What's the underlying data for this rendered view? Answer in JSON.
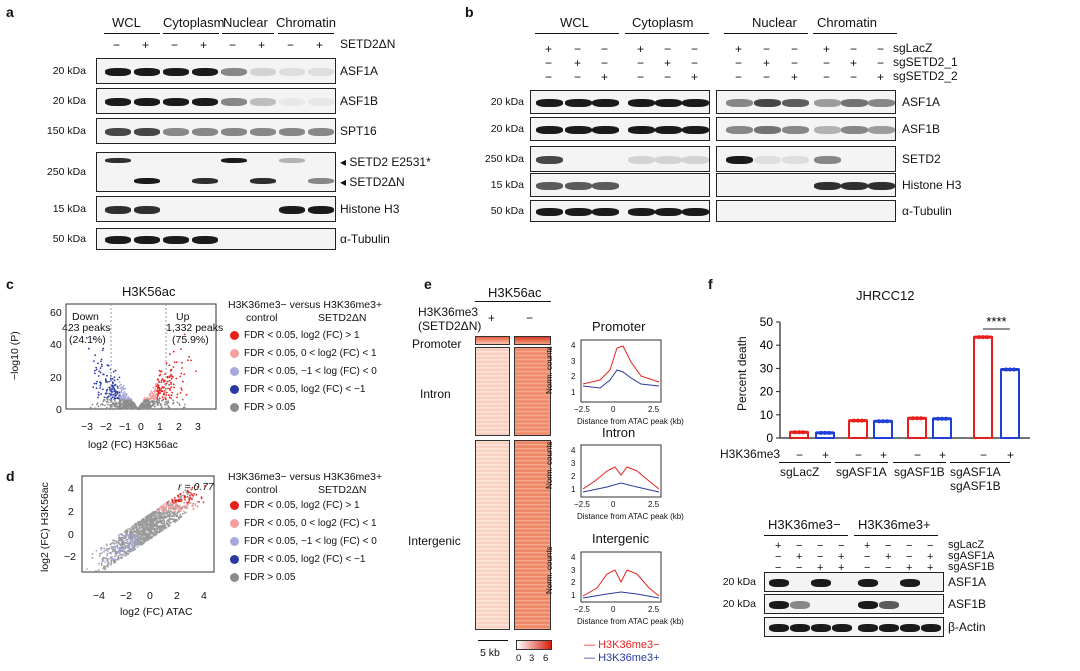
{
  "panel_letters": [
    "a",
    "b",
    "c",
    "d",
    "e",
    "f"
  ],
  "panel_a": {
    "groups": [
      "WCL",
      "Cytoplasm",
      "Nuclear",
      "Chromatin"
    ],
    "condition_label": "SETD2ΔN",
    "signs": [
      "−",
      "+",
      "−",
      "+",
      "−",
      "+",
      "−",
      "+"
    ],
    "rows": [
      {
        "kda": "20 kDa",
        "label": "ASF1A"
      },
      {
        "kda": "20 kDa",
        "label": "ASF1B"
      },
      {
        "kda": "150 kDa",
        "label": "SPT16"
      },
      {
        "kda": "250 kDa",
        "label": "◂ SETD2 E2531*",
        "label2": "◂ SETD2ΔN"
      },
      {
        "kda": "15 kDa",
        "label": "Histone H3"
      },
      {
        "kda": "50 kDa",
        "label": "α-Tubulin"
      }
    ]
  },
  "panel_b": {
    "groups": [
      "WCL",
      "Cytoplasm",
      "Nuclear",
      "Chromatin"
    ],
    "sg_labels": [
      "sgLacZ",
      "sgSETD2_1",
      "sgSETD2_2"
    ],
    "sg_rows": [
      [
        "+",
        "−",
        "−",
        "+",
        "−",
        "−",
        "+",
        "−",
        "−",
        "+",
        "−",
        "−"
      ],
      [
        "−",
        "+",
        "−",
        "−",
        "+",
        "−",
        "−",
        "+",
        "−",
        "−",
        "+",
        "−"
      ],
      [
        "−",
        "−",
        "+",
        "−",
        "−",
        "+",
        "−",
        "−",
        "+",
        "−",
        "−",
        "+"
      ]
    ],
    "rows": [
      {
        "kda": "20 kDa",
        "label": "ASF1A"
      },
      {
        "kda": "20 kDa",
        "label": "ASF1B"
      },
      {
        "kda": "250 kDa",
        "label": "SETD2"
      },
      {
        "kda": "15 kDa",
        "label": "Histone H3"
      },
      {
        "kda": "50 kDa",
        "label": "α-Tubulin"
      }
    ]
  },
  "panel_c": {
    "title": "H3K56ac",
    "down_label": "Down",
    "down_peaks": "423 peaks",
    "down_pct": "(24.1%)",
    "up_label": "Up",
    "up_peaks": "1,332 peaks",
    "up_pct": "(75.9%)",
    "ylabel": "−log10 (P)",
    "xlabel": "log2 (FC) H3K56ac",
    "yticks": [
      "60",
      "40",
      "20",
      "0"
    ],
    "xticks": [
      "−3",
      "−2",
      "−1",
      "0",
      "1",
      "2",
      "3"
    ]
  },
  "legend": {
    "header": "H3K36me3− versus H3K36me3+",
    "sub_left": "control",
    "sub_right": "SETD2ΔN",
    "entries": [
      {
        "text": "FDR < 0.05, log2 (FC) > 1",
        "color": "#e8201c"
      },
      {
        "text": "FDR < 0.05, 0 < log2 (FC) < 1",
        "color": "#f4a0a0"
      },
      {
        "text": "FDR < 0.05, −1 < log (FC) < 0",
        "color": "#a8a8dc"
      },
      {
        "text": "FDR < 0.05, log2 (FC) < −1",
        "color": "#2b3aa0"
      },
      {
        "text": "FDR > 0.05",
        "color": "#8c8c8c"
      }
    ]
  },
  "panel_d": {
    "ylabel": "log2 (FC) H3K56ac",
    "xlabel": "log2 (FC) ATAC",
    "r_label": "r = 0.77",
    "yticks": [
      "4",
      "2",
      "0",
      "−2"
    ],
    "xticks": [
      "−4",
      "−2",
      "0",
      "2",
      "4"
    ],
    "legend_entries": [
      "FDR < 0.05, log2 (FC) > 1",
      "FDR < 0.05, 0 < log2 (FC) < 1",
      "FDR < 0.05, −1 < log (FC) < 0",
      "FDR < 0.05, log2 (FC) < −1",
      "FDR > 0.05"
    ]
  },
  "panel_e": {
    "title": "H3K56ac",
    "row_label": "H3K36me3",
    "row_sub": "(SETD2ΔN)",
    "signs": [
      "+",
      "−"
    ],
    "regions": [
      "Promoter",
      "Intron",
      "Intergenic"
    ],
    "plot_titles": [
      "Promoter",
      "Intron",
      "Intergenic"
    ],
    "ylabel": "Norm. counts",
    "xlabel": "Distance from ATAC peak (kb)",
    "xticks": [
      "−2.5",
      "0",
      "2.5"
    ],
    "promoter_yticks": [
      "4",
      "3",
      "2",
      "1"
    ],
    "intron_yticks": [
      "4",
      "3",
      "2",
      "1"
    ],
    "intergenic_yticks": [
      "4",
      "3",
      "2",
      "1"
    ],
    "scale": "5 kb",
    "colorbar_ticks": [
      "0",
      "3",
      "6"
    ],
    "legend": [
      {
        "text": "H3K36me3−",
        "color": "#e8201c"
      },
      {
        "text": "H3K36me3+",
        "color": "#2b3aa0"
      }
    ]
  },
  "chart_data": {
    "type": "bar",
    "title": "JHRCC12",
    "ylabel": "Percent death",
    "ylim": [
      0,
      50
    ],
    "yticks": [
      "50",
      "40",
      "30",
      "20",
      "10",
      "0"
    ],
    "row_label": "H3K36me3",
    "categories": [
      "sgLacZ −",
      "sgLacZ +",
      "sgASF1A −",
      "sgASF1A +",
      "sgASF1B −",
      "sgASF1B +",
      "sgASF1A sgASF1B −",
      "sgASF1A sgASF1B +"
    ],
    "signs": [
      "−",
      "+",
      "−",
      "+",
      "−",
      "+",
      "−",
      "+"
    ],
    "group_labels": [
      "sgLacZ",
      "sgASF1A",
      "sgASF1B",
      "sgASF1A",
      "sgASF1B"
    ],
    "values": [
      2.5,
      2.2,
      7.5,
      7.2,
      8.5,
      8.3,
      43.5,
      29.5
    ],
    "colors": [
      "#e8201c",
      "#1f3fd8",
      "#e8201c",
      "#1f3fd8",
      "#e8201c",
      "#1f3fd8",
      "#e8201c",
      "#1f3fd8"
    ],
    "significance": "****"
  },
  "panel_f_blot": {
    "groups": [
      "H3K36me3−",
      "H3K36me3+"
    ],
    "sg_labels": [
      "sgLacZ",
      "sgASF1A",
      "sgASF1B"
    ],
    "sg_rows": [
      [
        "+",
        "−",
        "−",
        "−",
        "+",
        "−",
        "−",
        "−"
      ],
      [
        "−",
        "+",
        "−",
        "+",
        "−",
        "+",
        "−",
        "+"
      ],
      [
        "−",
        "−",
        "+",
        "+",
        "−",
        "−",
        "+",
        "+"
      ]
    ],
    "rows": [
      {
        "kda": "20 kDa",
        "label": "ASF1A"
      },
      {
        "kda": "20 kDa",
        "label": "ASF1B"
      },
      {
        "kda": "",
        "label": "β-Actin"
      }
    ]
  }
}
